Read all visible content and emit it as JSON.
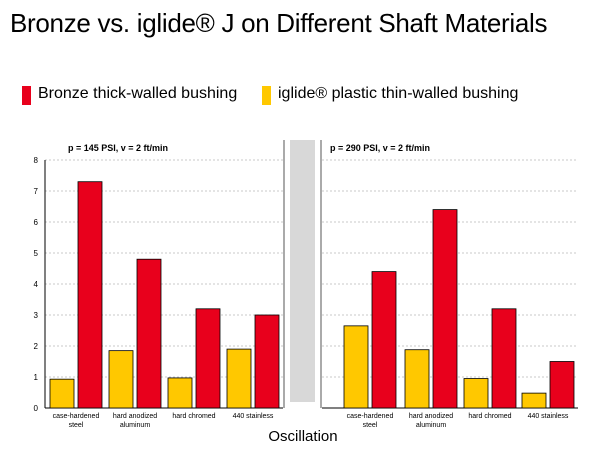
{
  "title": "Bronze vs. iglide® J on Different Shaft Materials",
  "legend": [
    {
      "name": "Bronze thick-walled bushing",
      "color": "#e8001c"
    },
    {
      "name": "iglide® plastic thin-walled bushing",
      "color": "#ffc800"
    }
  ],
  "chart_data": {
    "type": "bar",
    "ylim": [
      0,
      8
    ],
    "yticks": [
      "0",
      "1",
      "2",
      "3",
      "4",
      "5",
      "6",
      "7",
      "8"
    ],
    "xlabel": "Oscillation",
    "panels": [
      {
        "annotation": "p = 145 PSI, v =  2 ft/min",
        "categories": [
          [
            "case-hardened",
            "steel"
          ],
          [
            "hard anodized",
            "aluminum"
          ],
          [
            "hard chromed"
          ],
          [
            "440 stainless"
          ]
        ],
        "series": [
          {
            "name": "iglide® plastic thin-walled bushing",
            "values": [
              0.93,
              1.85,
              0.97,
              1.9
            ]
          },
          {
            "name": "Bronze thick-walled bushing",
            "values": [
              7.3,
              4.8,
              3.2,
              3.0
            ]
          }
        ]
      },
      {
        "annotation": "p =  290 PSI, v = 2 ft/min",
        "categories": [
          [
            "case-hardened",
            "steel"
          ],
          [
            "hard anodized",
            "aluminum"
          ],
          [
            "hard chromed"
          ],
          [
            "440 stainless"
          ]
        ],
        "series": [
          {
            "name": "iglide® plastic thin-walled bushing",
            "values": [
              2.65,
              1.88,
              0.95,
              0.48
            ]
          },
          {
            "name": "Bronze thick-walled bushing",
            "values": [
              4.4,
              6.4,
              3.2,
              1.5
            ]
          }
        ]
      }
    ],
    "colors": {
      "iglide": "#ffc800",
      "bronze": "#e8001c",
      "grid": "#c8c8c8",
      "divider": "#d8d8d8"
    }
  }
}
